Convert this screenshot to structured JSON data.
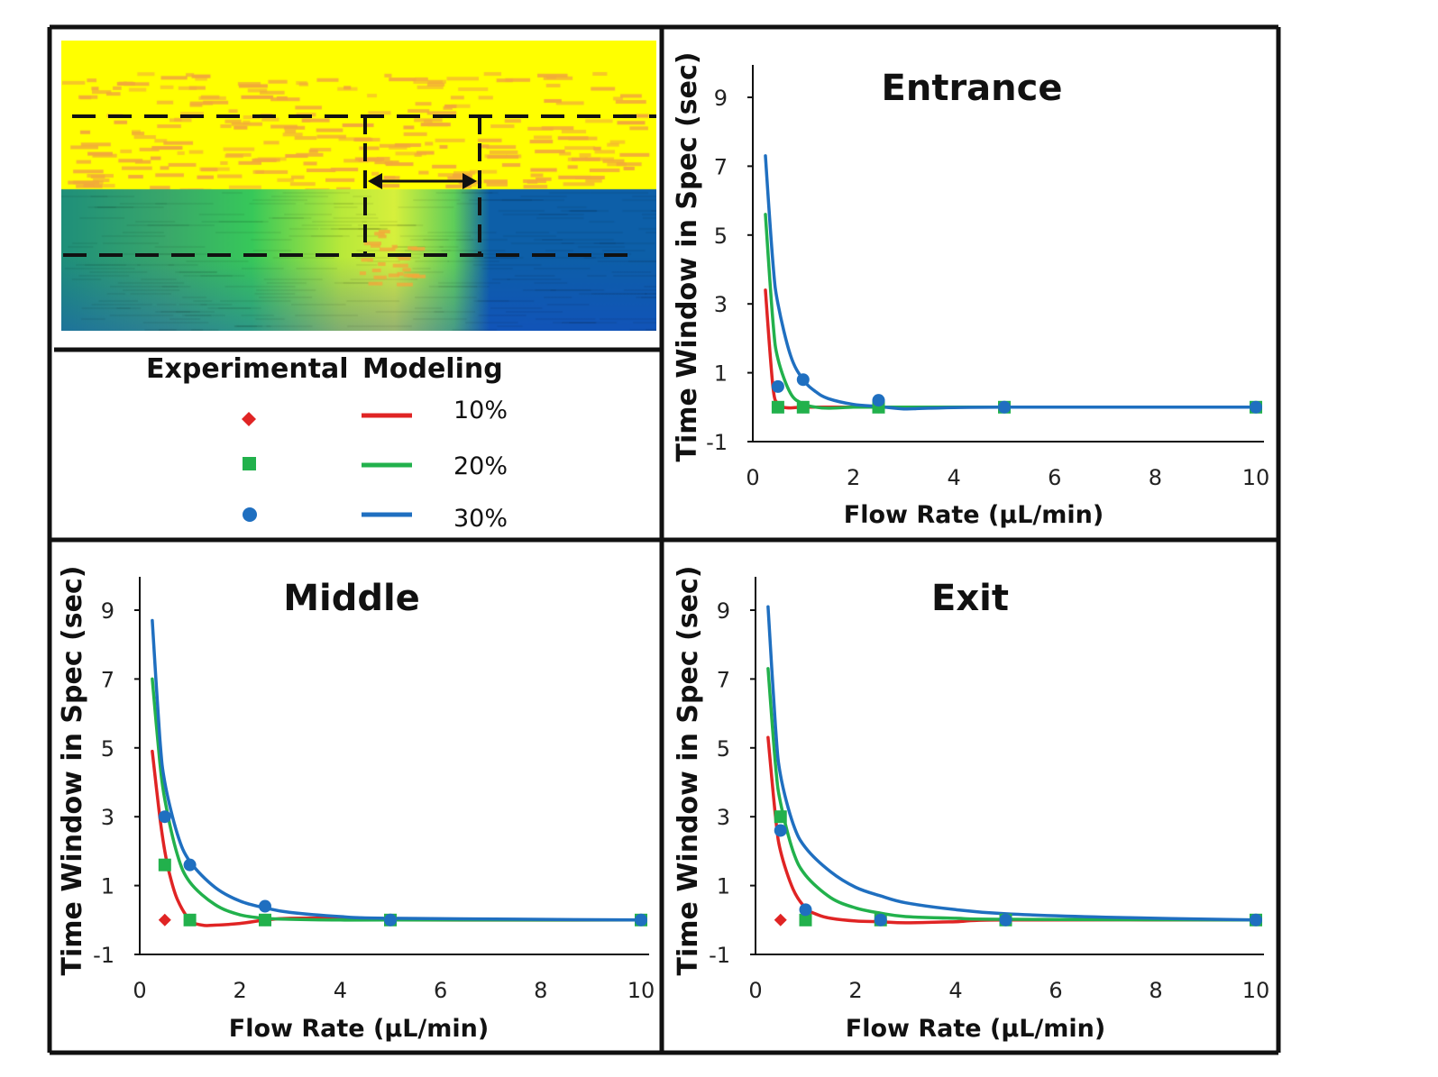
{
  "legend": {
    "experimental_label": "Experimental",
    "modeling_label": "Modeling",
    "entries": [
      {
        "label": "10%",
        "color": "#e02424",
        "marker": "diamond"
      },
      {
        "label": "20%",
        "color": "#22b14c",
        "marker": "square"
      },
      {
        "label": "30%",
        "color": "#1f6fc0",
        "marker": "circle"
      }
    ]
  },
  "heatmap": {
    "colors": {
      "high": "#ffff00",
      "speckle": "#f2a93b",
      "mid": "#37c85a",
      "low": "#0d5fa8",
      "deep": "#1a3fd6"
    }
  },
  "chart_data": [
    {
      "type": "line",
      "title": "Entrance",
      "xlabel": "Flow Rate (µL/min)",
      "ylabel": "Time Window in Spec (sec)",
      "xlim": [
        0,
        10
      ],
      "ylim": [
        -1,
        10
      ],
      "xticks": [
        "0",
        "2",
        "4",
        "6",
        "8",
        "10"
      ],
      "yticks": [
        "-1",
        "1",
        "3",
        "5",
        "7",
        "9"
      ],
      "grid": false,
      "series": [
        {
          "name": "10%",
          "color": "#e02424",
          "model_x": [
            0.25,
            0.4,
            0.5,
            0.6,
            0.75,
            1.0,
            1.5,
            2.0,
            2.5,
            3.0,
            5.0,
            10.0
          ],
          "model_y": [
            3.4,
            0.6,
            0.1,
            0.0,
            -0.02,
            0.0,
            0.0,
            0.0,
            0.0,
            0.0,
            0.0,
            0.0
          ],
          "exp_x": [
            0.5,
            1.0,
            2.5,
            5.0,
            10.0
          ],
          "exp_y": [
            0.0,
            0.0,
            0.0,
            0.0,
            0.0
          ]
        },
        {
          "name": "20%",
          "color": "#22b14c",
          "model_x": [
            0.25,
            0.4,
            0.5,
            0.75,
            1.0,
            1.25,
            1.5,
            2.0,
            2.5,
            3.0,
            5.0,
            10.0
          ],
          "model_y": [
            5.6,
            2.5,
            1.4,
            0.4,
            0.1,
            0.0,
            -0.03,
            0.0,
            0.0,
            0.0,
            0.0,
            0.0
          ],
          "exp_x": [
            0.5,
            1.0,
            2.5,
            5.0,
            10.0
          ],
          "exp_y": [
            0.0,
            0.0,
            0.0,
            0.0,
            0.0
          ]
        },
        {
          "name": "30%",
          "color": "#1f6fc0",
          "model_x": [
            0.25,
            0.4,
            0.5,
            0.75,
            1.0,
            1.25,
            1.5,
            2.0,
            2.5,
            3.0,
            3.5,
            5.0,
            10.0
          ],
          "model_y": [
            7.3,
            4.2,
            3.0,
            1.5,
            0.8,
            0.45,
            0.25,
            0.08,
            0.02,
            -0.05,
            -0.03,
            0.0,
            0.0
          ],
          "exp_x": [
            0.5,
            1.0,
            2.5,
            5.0,
            10.0
          ],
          "exp_y": [
            0.6,
            0.8,
            0.2,
            0.0,
            0.0
          ]
        }
      ]
    },
    {
      "type": "line",
      "title": "Middle",
      "xlabel": "Flow Rate (µL/min)",
      "ylabel": "Time Window in Spec (sec)",
      "xlim": [
        0,
        10
      ],
      "ylim": [
        -1,
        10
      ],
      "xticks": [
        "0",
        "2",
        "4",
        "6",
        "8",
        "10"
      ],
      "yticks": [
        "-1",
        "1",
        "3",
        "5",
        "7",
        "9"
      ],
      "grid": false,
      "series": [
        {
          "name": "10%",
          "color": "#e02424",
          "model_x": [
            0.25,
            0.4,
            0.5,
            0.6,
            0.75,
            1.0,
            1.25,
            1.5,
            2.0,
            2.5,
            3.0,
            4.0,
            5.0,
            10.0
          ],
          "model_y": [
            4.9,
            3.0,
            2.0,
            1.3,
            0.6,
            0.0,
            -0.15,
            -0.15,
            -0.1,
            0.0,
            0.05,
            0.05,
            0.0,
            0.0
          ],
          "exp_x": [
            0.5,
            1.0,
            2.5,
            5.0,
            10.0
          ],
          "exp_y": [
            0.0,
            0.0,
            0.0,
            0.0,
            0.0
          ]
        },
        {
          "name": "20%",
          "color": "#22b14c",
          "model_x": [
            0.25,
            0.4,
            0.5,
            0.75,
            1.0,
            1.5,
            2.0,
            2.5,
            3.0,
            4.0,
            5.0,
            10.0
          ],
          "model_y": [
            7.0,
            4.6,
            3.5,
            1.9,
            1.1,
            0.45,
            0.15,
            0.05,
            0.02,
            0.0,
            0.0,
            0.0
          ],
          "exp_x": [
            0.5,
            1.0,
            2.5,
            5.0,
            10.0
          ],
          "exp_y": [
            1.6,
            0.0,
            0.0,
            0.0,
            0.0
          ]
        },
        {
          "name": "30%",
          "color": "#1f6fc0",
          "model_x": [
            0.25,
            0.4,
            0.5,
            0.75,
            1.0,
            1.5,
            2.0,
            2.5,
            3.0,
            4.0,
            5.0,
            10.0
          ],
          "model_y": [
            8.7,
            5.3,
            4.0,
            2.5,
            1.7,
            0.95,
            0.55,
            0.35,
            0.22,
            0.1,
            0.05,
            0.0
          ],
          "exp_x": [
            0.5,
            1.0,
            2.5,
            5.0,
            10.0
          ],
          "exp_y": [
            3.0,
            1.6,
            0.4,
            0.0,
            0.0
          ]
        }
      ]
    },
    {
      "type": "line",
      "title": "Exit",
      "xlabel": "Flow Rate (µL/min)",
      "ylabel": "Time Window in Spec (sec)",
      "xlim": [
        0,
        10
      ],
      "ylim": [
        -1,
        10
      ],
      "xticks": [
        "0",
        "2",
        "4",
        "6",
        "8",
        "10"
      ],
      "yticks": [
        "-1",
        "1",
        "3",
        "5",
        "7",
        "9"
      ],
      "grid": false,
      "series": [
        {
          "name": "10%",
          "color": "#e02424",
          "model_x": [
            0.25,
            0.4,
            0.5,
            0.75,
            1.0,
            1.25,
            1.5,
            2.0,
            2.5,
            3.0,
            4.0,
            5.0,
            10.0
          ],
          "model_y": [
            5.3,
            3.0,
            2.0,
            0.9,
            0.35,
            0.15,
            0.05,
            -0.03,
            -0.05,
            -0.08,
            -0.05,
            0.0,
            0.0
          ],
          "exp_x": [
            0.5,
            1.0,
            2.5,
            5.0,
            10.0
          ],
          "exp_y": [
            0.0,
            0.3,
            0.0,
            0.0,
            0.0
          ]
        },
        {
          "name": "20%",
          "color": "#22b14c",
          "model_x": [
            0.25,
            0.4,
            0.5,
            0.75,
            1.0,
            1.5,
            2.0,
            2.5,
            3.0,
            4.0,
            5.0,
            10.0
          ],
          "model_y": [
            7.3,
            4.5,
            3.4,
            2.0,
            1.3,
            0.65,
            0.35,
            0.2,
            0.1,
            0.05,
            0.02,
            0.0
          ],
          "exp_x": [
            0.5,
            1.0,
            2.5,
            5.0,
            10.0
          ],
          "exp_y": [
            3.0,
            0.0,
            0.0,
            0.0,
            0.0
          ]
        },
        {
          "name": "30%",
          "color": "#1f6fc0",
          "model_x": [
            0.25,
            0.4,
            0.5,
            0.75,
            1.0,
            1.5,
            2.0,
            2.5,
            3.0,
            4.0,
            5.0,
            7.0,
            10.0
          ],
          "model_y": [
            9.1,
            5.6,
            4.2,
            2.8,
            2.1,
            1.4,
            0.95,
            0.7,
            0.5,
            0.3,
            0.18,
            0.08,
            0.0
          ],
          "exp_x": [
            0.5,
            1.0,
            2.5,
            5.0,
            10.0
          ],
          "exp_y": [
            2.6,
            0.3,
            0.0,
            0.0,
            0.0
          ]
        }
      ]
    }
  ]
}
